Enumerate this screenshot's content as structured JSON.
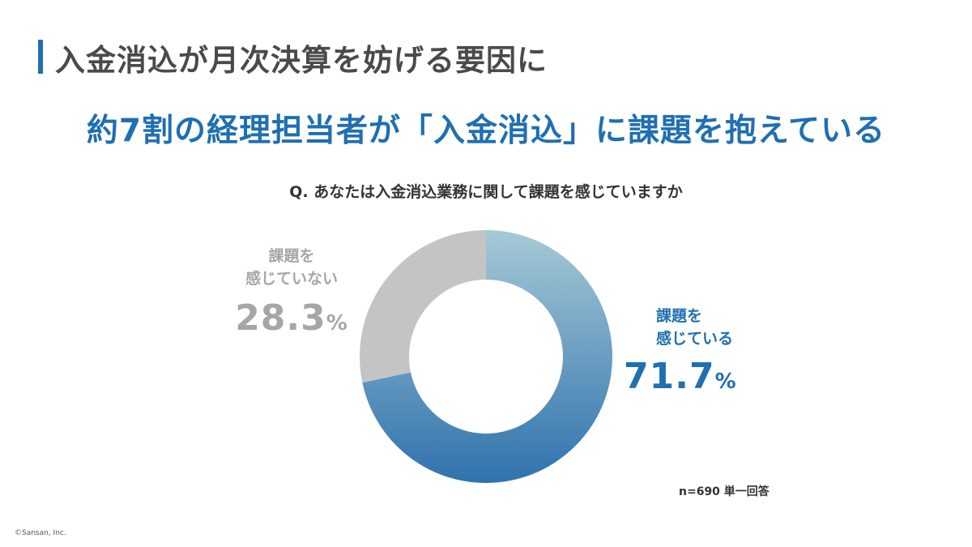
{
  "header": {
    "title": "入金消込が月次決算を妨げる要因に"
  },
  "headline": "約7割の経理担当者が「入金消込」に課題を抱えている",
  "chart_data": {
    "type": "pie",
    "title": "Q. あなたは入金消込業務に関して課題を感じていますか",
    "slices": [
      {
        "label_line1": "課題を",
        "label_line2": "感じている",
        "value": 71.7,
        "value_text": "71.7",
        "unit": "%",
        "color": "#2f72ad",
        "color_light": "#a6c9d6"
      },
      {
        "label_line1": "課題を",
        "label_line2": "感じていない",
        "value": 28.3,
        "value_text": "28.3",
        "unit": "%",
        "color": "#c4c4c4",
        "color_light": "#c4c4c4"
      }
    ],
    "note": "n=690 単一回答"
  },
  "footer": {
    "copyright": "©Sansan, Inc."
  }
}
